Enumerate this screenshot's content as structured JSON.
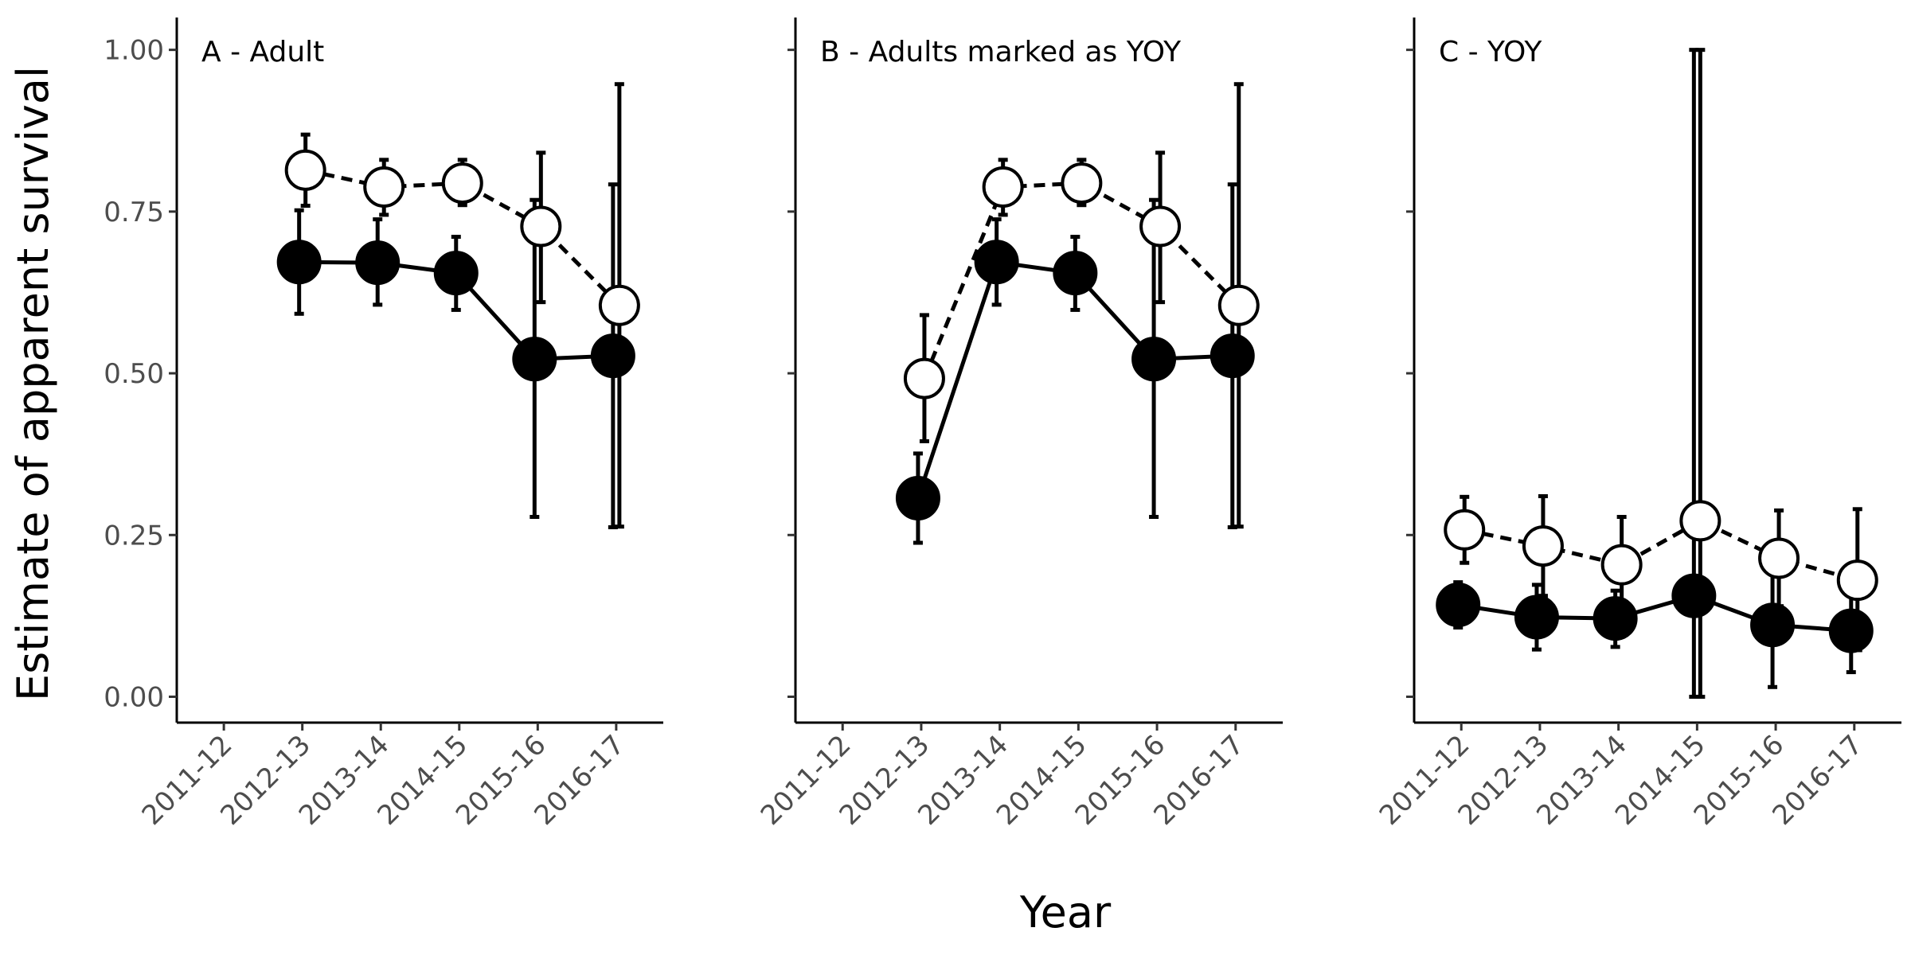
{
  "chart_data": [
    {
      "type": "line",
      "title": "A - Adult",
      "xlabel": "Year",
      "ylabel": "Estimate of apparent survival",
      "categories": [
        "2011-12",
        "2012-13",
        "2013-14",
        "2014-15",
        "2015-16",
        "2016-17"
      ],
      "ylim": [
        -0.04,
        1.05
      ],
      "yticks": [
        "0.00",
        "0.25",
        "0.50",
        "0.75",
        "1.00"
      ],
      "grid": false,
      "series": [
        {
          "style": "filled-circle-solid-line",
          "values": [
            null,
            0.672,
            0.671,
            0.655,
            0.522,
            0.527
          ],
          "lower": [
            null,
            0.592,
            0.606,
            0.598,
            0.278,
            0.262
          ],
          "upper": [
            null,
            0.752,
            0.738,
            0.711,
            0.768,
            0.792
          ]
        },
        {
          "style": "open-circle-dashed-line",
          "values": [
            null,
            0.814,
            0.788,
            0.794,
            0.727,
            0.605
          ],
          "lower": [
            null,
            0.759,
            0.745,
            0.76,
            0.61,
            0.263
          ],
          "upper": [
            null,
            0.869,
            0.83,
            0.83,
            0.841,
            0.947
          ]
        }
      ]
    },
    {
      "type": "line",
      "title": "B - Adults marked as YOY",
      "xlabel": "Year",
      "ylabel": "",
      "categories": [
        "2011-12",
        "2012-13",
        "2013-14",
        "2014-15",
        "2015-16",
        "2016-17"
      ],
      "ylim": [
        -0.04,
        1.05
      ],
      "yticks": [
        "0.00",
        "0.25",
        "0.50",
        "0.75",
        "1.00"
      ],
      "grid": false,
      "series": [
        {
          "style": "filled-circle-solid-line",
          "values": [
            null,
            0.307,
            0.672,
            0.655,
            0.522,
            0.527
          ],
          "lower": [
            null,
            0.238,
            0.606,
            0.598,
            0.278,
            0.262
          ],
          "upper": [
            null,
            0.376,
            0.738,
            0.711,
            0.768,
            0.792
          ]
        },
        {
          "style": "open-circle-dashed-line",
          "values": [
            null,
            0.492,
            0.788,
            0.794,
            0.727,
            0.605
          ],
          "lower": [
            null,
            0.395,
            0.745,
            0.76,
            0.61,
            0.263
          ],
          "upper": [
            null,
            0.59,
            0.83,
            0.83,
            0.841,
            0.947
          ]
        }
      ]
    },
    {
      "type": "line",
      "title": "C - YOY",
      "xlabel": "Year",
      "ylabel": "",
      "categories": [
        "2011-12",
        "2012-13",
        "2013-14",
        "2014-15",
        "2015-16",
        "2016-17"
      ],
      "ylim": [
        -0.04,
        1.05
      ],
      "yticks": [
        "0.00",
        "0.25",
        "0.50",
        "0.75",
        "1.00"
      ],
      "grid": false,
      "series": [
        {
          "style": "filled-circle-solid-line",
          "values": [
            0.142,
            0.123,
            0.121,
            0.156,
            0.111,
            0.102
          ],
          "lower": [
            0.107,
            0.073,
            0.077,
            0.0,
            0.015,
            0.038
          ],
          "upper": [
            0.177,
            0.173,
            0.164,
            1.0,
            0.207,
            0.166
          ]
        },
        {
          "style": "open-circle-dashed-line",
          "values": [
            0.258,
            0.233,
            0.204,
            0.272,
            0.214,
            0.18
          ],
          "lower": [
            0.207,
            0.156,
            0.13,
            0.0,
            0.14,
            0.072
          ],
          "upper": [
            0.309,
            0.31,
            0.278,
            1.0,
            0.288,
            0.29
          ]
        }
      ]
    }
  ]
}
